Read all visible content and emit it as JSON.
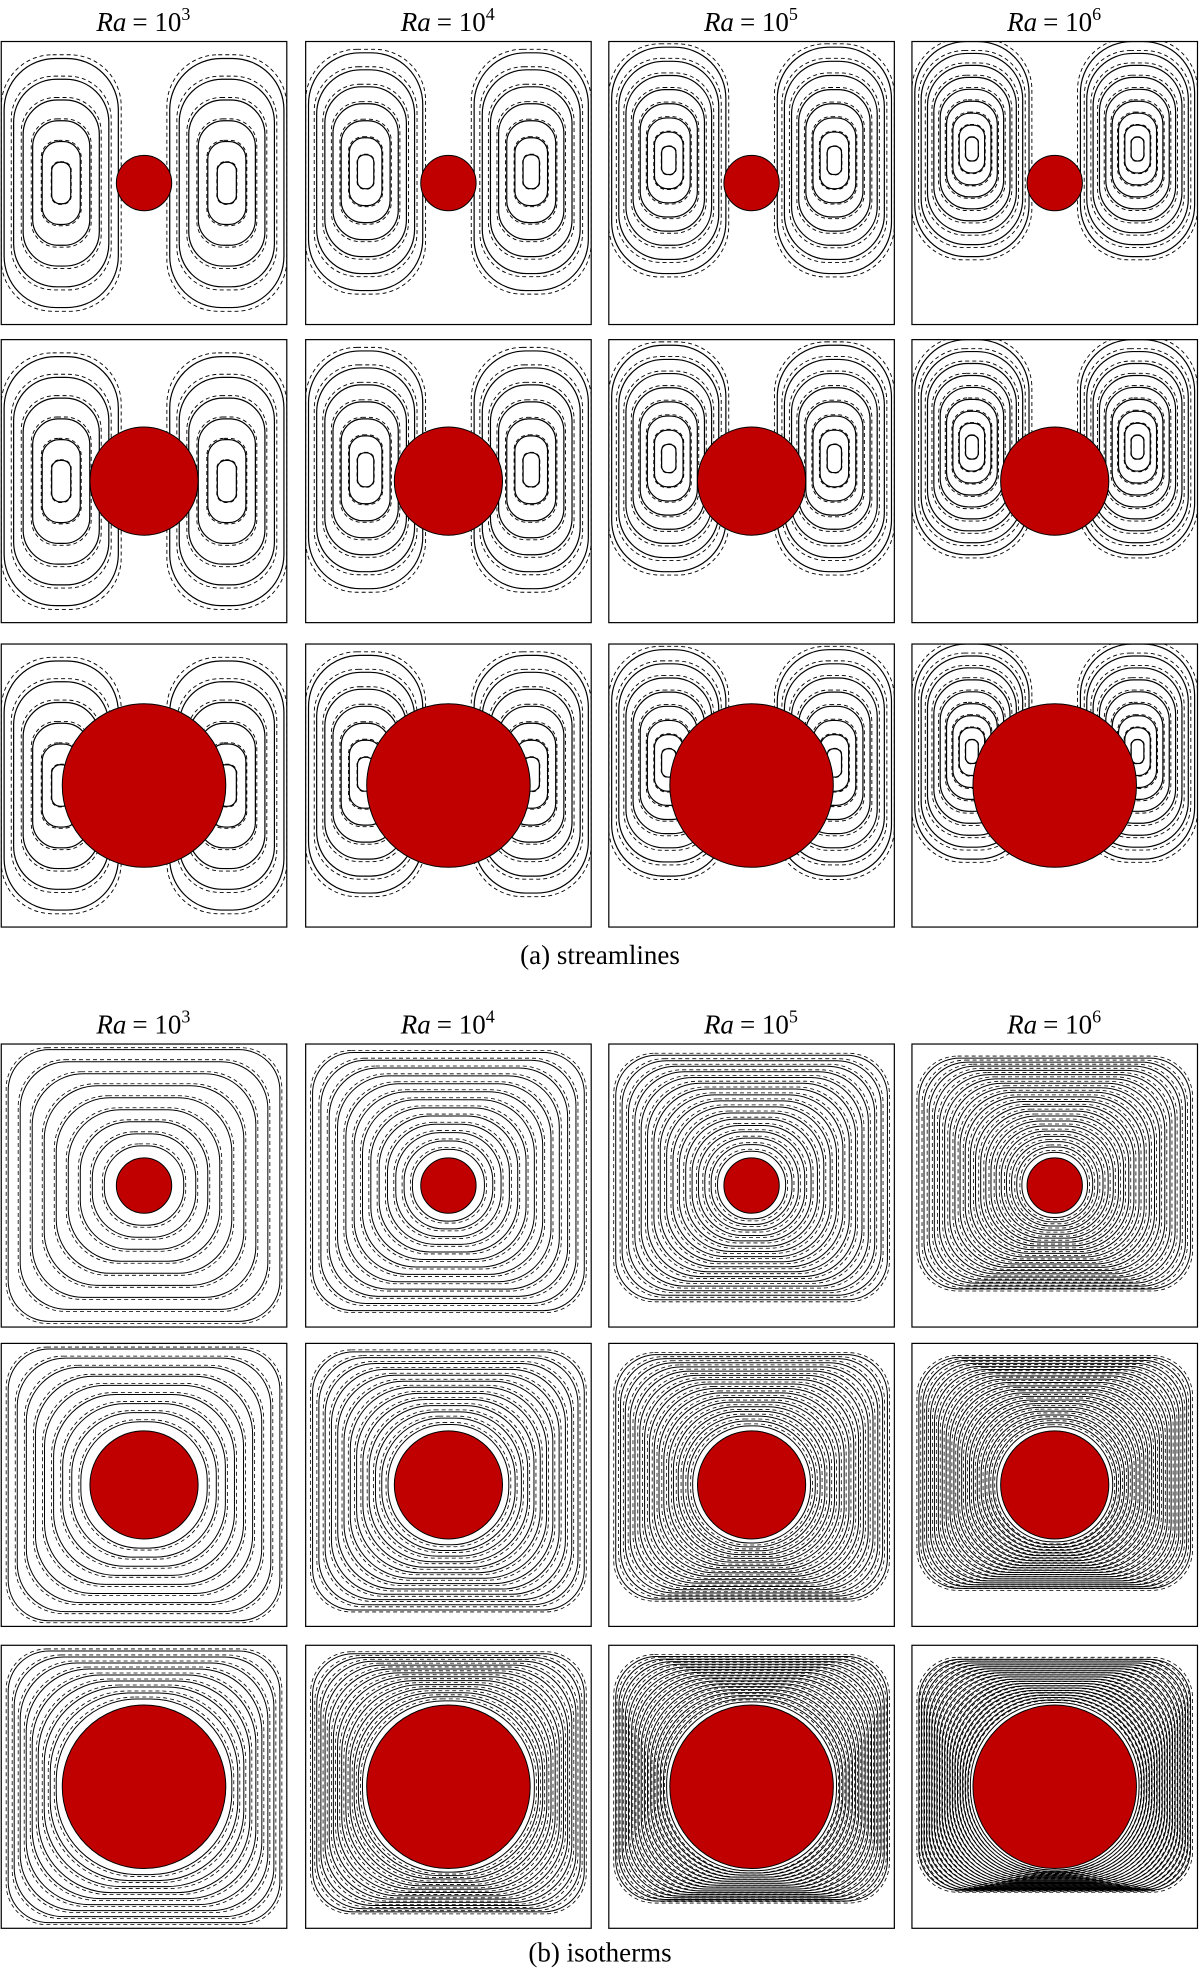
{
  "sections": [
    {
      "headings": [
        {
          "symbol": "Ra",
          "relation": "= 10",
          "exponent": "3"
        },
        {
          "symbol": "Ra",
          "relation": "= 10",
          "exponent": "4"
        },
        {
          "symbol": "Ra",
          "relation": "= 10",
          "exponent": "5"
        },
        {
          "symbol": "Ra",
          "relation": "= 10",
          "exponent": "6"
        }
      ],
      "caption": "(a) streamlines"
    },
    {
      "headings": [
        {
          "symbol": "Ra",
          "relation": "= 10",
          "exponent": "3"
        },
        {
          "symbol": "Ra",
          "relation": "= 10",
          "exponent": "4"
        },
        {
          "symbol": "Ra",
          "relation": "= 10",
          "exponent": "5"
        },
        {
          "symbol": "Ra",
          "relation": "= 10",
          "exponent": "6"
        }
      ],
      "caption": "(b) isotherms"
    }
  ]
}
